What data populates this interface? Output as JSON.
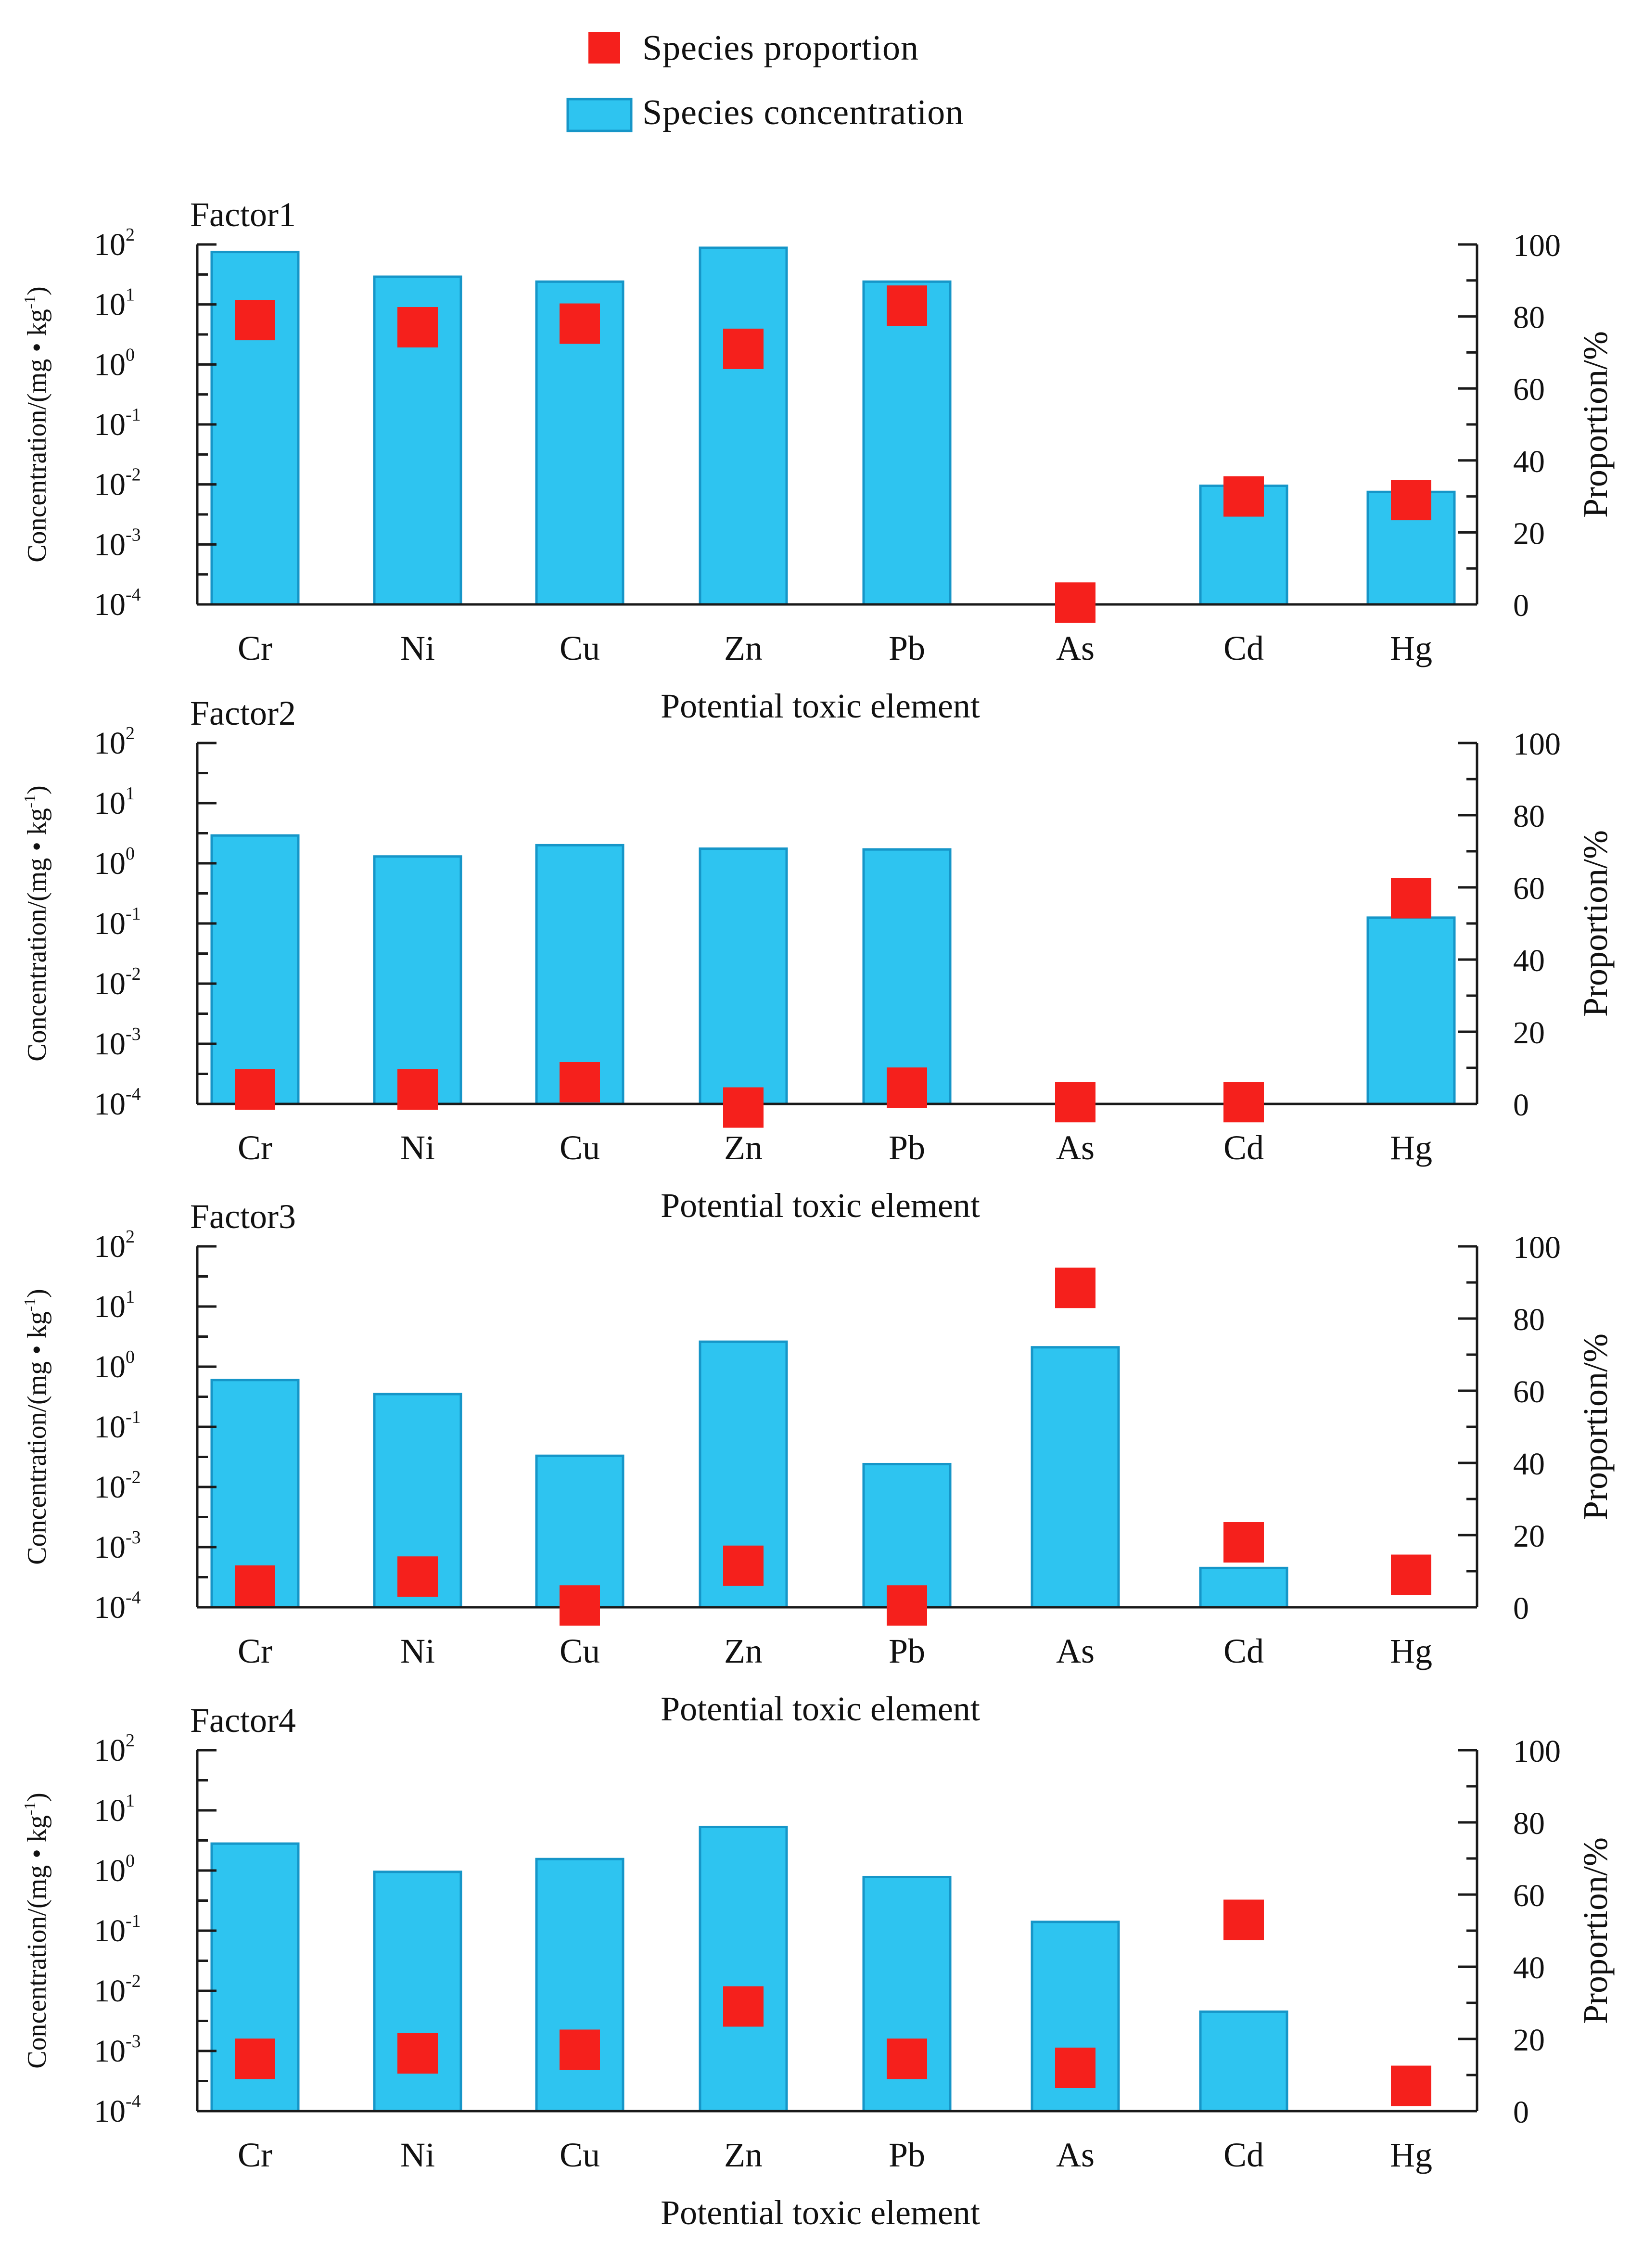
{
  "legend": {
    "proportion_label": "Species proportion",
    "concentration_label": "Species concentration"
  },
  "colors": {
    "bar_fill": "#2ec4f0",
    "bar_stroke": "#1696c8",
    "marker_fill": "#f5201c",
    "axis": "#1a1a1a"
  },
  "chart_data": [
    {
      "type": "bar",
      "title": "Factor1",
      "xlabel": "Potential toxic element",
      "ylabel_left": "Concentration/(mg • kg",
      "ylabel_left_sup": "-1",
      "ylabel_left_close": ")",
      "ylabel_right": "Proportion/%",
      "categories": [
        "Cr",
        "Ni",
        "Cu",
        "Zn",
        "Pb",
        "As",
        "Cd",
        "Hg"
      ],
      "y_left_scale": "log",
      "y_left_ticks": [
        {
          "base": "10",
          "exp": "-4"
        },
        {
          "base": "10",
          "exp": "-3"
        },
        {
          "base": "10",
          "exp": "-2"
        },
        {
          "base": "10",
          "exp": "-1"
        },
        {
          "base": "10",
          "exp": "0"
        },
        {
          "base": "10",
          "exp": "1"
        },
        {
          "base": "10",
          "exp": "2"
        }
      ],
      "y_right_ticks": [
        "0",
        "20",
        "40",
        "60",
        "80",
        "100"
      ],
      "ylim_left": [
        0.0001,
        100
      ],
      "ylim_right": [
        0,
        100
      ],
      "series": [
        {
          "name": "Species concentration",
          "axis": "left",
          "values": [
            75,
            29,
            24,
            88,
            24,
            null,
            0.0095,
            0.0075
          ]
        },
        {
          "name": "Species proportion",
          "axis": "right",
          "values": [
            79,
            77,
            78,
            71,
            83,
            0.5,
            30,
            29
          ]
        }
      ]
    },
    {
      "type": "bar",
      "title": "Factor2",
      "xlabel": "Potential toxic element",
      "ylabel_left": "Concentration/(mg • kg",
      "ylabel_left_sup": "-1",
      "ylabel_left_close": ")",
      "ylabel_right": "Proportion/%",
      "categories": [
        "Cr",
        "Ni",
        "Cu",
        "Zn",
        "Pb",
        "As",
        "Cd",
        "Hg"
      ],
      "y_left_scale": "log",
      "y_left_ticks": [
        {
          "base": "10",
          "exp": "-4"
        },
        {
          "base": "10",
          "exp": "-3"
        },
        {
          "base": "10",
          "exp": "-2"
        },
        {
          "base": "10",
          "exp": "-1"
        },
        {
          "base": "10",
          "exp": "0"
        },
        {
          "base": "10",
          "exp": "1"
        },
        {
          "base": "10",
          "exp": "2"
        }
      ],
      "y_right_ticks": [
        "0",
        "20",
        "40",
        "60",
        "80",
        "100"
      ],
      "ylim_left": [
        0.0001,
        100
      ],
      "ylim_right": [
        0,
        100
      ],
      "series": [
        {
          "name": "Species concentration",
          "axis": "left",
          "values": [
            2.9,
            1.3,
            2.0,
            1.75,
            1.7,
            null,
            null,
            0.125
          ]
        },
        {
          "name": "Species proportion",
          "axis": "right",
          "values": [
            4,
            4,
            6,
            -1,
            4.5,
            0.5,
            0.5,
            57
          ]
        }
      ]
    },
    {
      "type": "bar",
      "title": "Factor3",
      "xlabel": "Potential toxic element",
      "ylabel_left": "Concentration/(mg • kg",
      "ylabel_left_sup": "-1",
      "ylabel_left_close": ")",
      "ylabel_right": "Proportion/%",
      "categories": [
        "Cr",
        "Ni",
        "Cu",
        "Zn",
        "Pb",
        "As",
        "Cd",
        "Hg"
      ],
      "y_left_scale": "log",
      "y_left_ticks": [
        {
          "base": "10",
          "exp": "-4"
        },
        {
          "base": "10",
          "exp": "-3"
        },
        {
          "base": "10",
          "exp": "-2"
        },
        {
          "base": "10",
          "exp": "-1"
        },
        {
          "base": "10",
          "exp": "0"
        },
        {
          "base": "10",
          "exp": "1"
        },
        {
          "base": "10",
          "exp": "2"
        }
      ],
      "y_right_ticks": [
        "0",
        "20",
        "40",
        "60",
        "80",
        "100"
      ],
      "ylim_left": [
        0.0001,
        100
      ],
      "ylim_right": [
        0,
        100
      ],
      "series": [
        {
          "name": "Species concentration",
          "axis": "left",
          "values": [
            0.6,
            0.35,
            0.033,
            2.6,
            0.024,
            2.1,
            0.00045,
            null
          ]
        },
        {
          "name": "Species proportion",
          "axis": "right",
          "values": [
            6,
            8.5,
            0.5,
            11.5,
            0.5,
            88.5,
            18,
            9
          ]
        }
      ]
    },
    {
      "type": "bar",
      "title": "Factor4",
      "xlabel": "Potential toxic element",
      "ylabel_left": "Concentration/(mg • kg",
      "ylabel_left_sup": "-1",
      "ylabel_left_close": ")",
      "ylabel_right": "Proportion/%",
      "categories": [
        "Cr",
        "Ni",
        "Cu",
        "Zn",
        "Pb",
        "As",
        "Cd",
        "Hg"
      ],
      "y_left_scale": "log",
      "y_left_ticks": [
        {
          "base": "10",
          "exp": "-4"
        },
        {
          "base": "10",
          "exp": "-3"
        },
        {
          "base": "10",
          "exp": "-2"
        },
        {
          "base": "10",
          "exp": "-1"
        },
        {
          "base": "10",
          "exp": "0"
        },
        {
          "base": "10",
          "exp": "1"
        },
        {
          "base": "10",
          "exp": "2"
        }
      ],
      "y_right_ticks": [
        "0",
        "20",
        "40",
        "60",
        "80",
        "100"
      ],
      "ylim_left": [
        0.0001,
        100
      ],
      "ylim_right": [
        0,
        100
      ],
      "series": [
        {
          "name": "Species concentration",
          "axis": "left",
          "values": [
            2.8,
            0.95,
            1.55,
            5.3,
            0.78,
            0.14,
            0.0045,
            null
          ]
        },
        {
          "name": "Species proportion",
          "axis": "right",
          "values": [
            14.5,
            16,
            17,
            29,
            14.5,
            12,
            53,
            7
          ]
        }
      ]
    }
  ]
}
